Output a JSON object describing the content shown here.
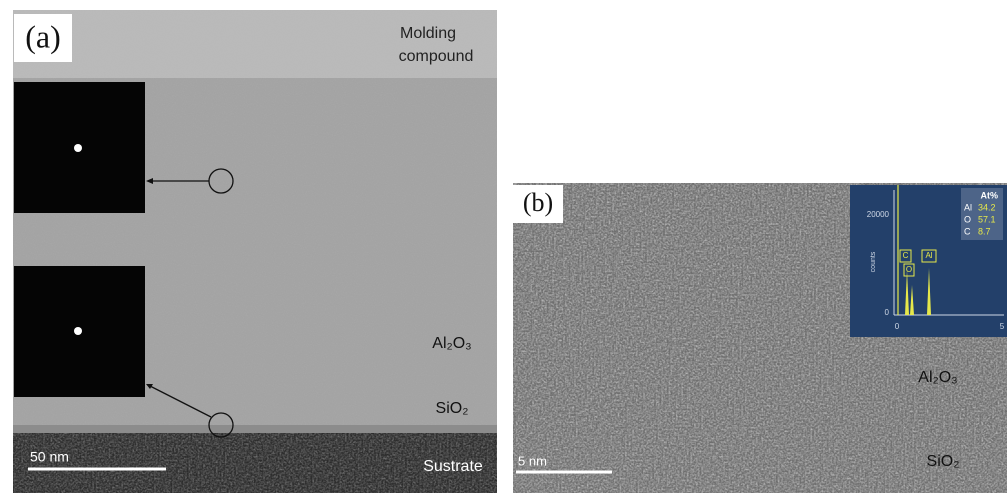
{
  "panel_a": {
    "label": "(a)",
    "molding": [
      "Molding",
      "compound"
    ],
    "layer": "Al₂O₃",
    "interface": "SiO₂",
    "scale_bar": "50 nm",
    "substrate": "Sustrate"
  },
  "panel_b": {
    "label": "(b)",
    "layer": "Al₂O₃",
    "interface": "SiO₂",
    "scale_bar": "5 nm",
    "eds": {
      "header": "At%",
      "rows": [
        [
          "Al",
          "34.2"
        ],
        [
          "O",
          "57.1"
        ],
        [
          "C",
          "8.7"
        ]
      ],
      "y_axis_label": "counts",
      "yticks": [
        "20000",
        "0"
      ],
      "xticks": [
        "0",
        "5"
      ],
      "peaks": [
        "C",
        "O",
        "Al"
      ]
    }
  }
}
